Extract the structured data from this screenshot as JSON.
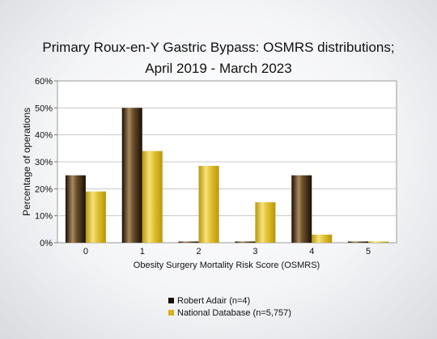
{
  "chart_data": {
    "type": "bar",
    "title_line1": "Primary Roux-en-Y Gastric Bypass: OSMRS distributions;",
    "title_line2": "April 2019 - March 2023",
    "xlabel": "Obesity Surgery Mortality Risk Score (OSMRS)",
    "ylabel": "Percentage of operations",
    "categories": [
      "0",
      "1",
      "2",
      "3",
      "4",
      "5"
    ],
    "yticks": [
      "0%",
      "10%",
      "20%",
      "30%",
      "40%",
      "50%",
      "60%"
    ],
    "ylim": [
      0,
      60
    ],
    "grid": true,
    "legend_position": "bottom",
    "series": [
      {
        "name": "Robert Adair (n=4)",
        "values": [
          25,
          50,
          0,
          0,
          25,
          0
        ],
        "color": "#3a2a1a"
      },
      {
        "name": "National Database (n=5,757)",
        "values": [
          19,
          34,
          28.5,
          15,
          3,
          0.3
        ],
        "color": "#d4b21c"
      }
    ]
  }
}
